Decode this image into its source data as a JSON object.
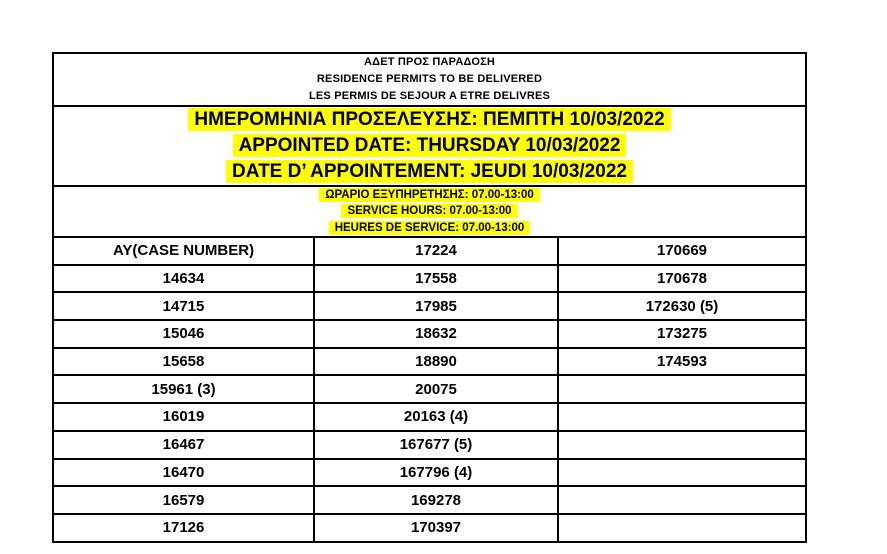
{
  "page": {
    "background_color": "#ffffff",
    "text_color": "#000000",
    "highlight_color": "#ffff00",
    "header": {
      "lines": [
        "ΑΔΕΤ ΠΡΟΣ ΠΑΡΑΔΟΣΗ",
        "RESIDENCE PERMITS TO BE DELIVERED",
        "LES PERMIS DE SEJOUR A ETRE DELIVRES"
      ]
    },
    "appointment": {
      "lines": [
        "ΗΜΕΡΟΜΗΝΙΑ ΠΡΟΣΕΛΕΥΣΗΣ: ΠΕΜΠΤΗ 10/03/2022",
        "APPOINTED DATE: THURSDAY 10/03/2022",
        "DATE D’ APPOINTEMENT: JEUDI 10/03/2022"
      ]
    },
    "service_hours": {
      "lines": [
        "ΩΡΑΡΙΟ ΕΞΥΠΗΡΕΤΗΣΗΣ: 07.00-13:00",
        "SERVICE HOURS: 07.00-13:00",
        "HEURES DE SERVICE: 07.00-13:00"
      ]
    },
    "table": {
      "column_count": 3,
      "rows": [
        [
          "AY(CASE NUMBER)",
          "17224",
          "170669"
        ],
        [
          "14634",
          "17558",
          "170678"
        ],
        [
          "14715",
          "17985",
          "172630 (5)"
        ],
        [
          "15046",
          "18632",
          "173275"
        ],
        [
          "15658",
          "18890",
          "174593"
        ],
        [
          "15961 (3)",
          "20075",
          ""
        ],
        [
          "16019",
          "20163 (4)",
          ""
        ],
        [
          "16467",
          "167677 (5)",
          ""
        ],
        [
          "16470",
          "167796 (4)",
          ""
        ],
        [
          "16579",
          "169278",
          ""
        ],
        [
          "17126",
          "170397",
          ""
        ]
      ]
    }
  }
}
